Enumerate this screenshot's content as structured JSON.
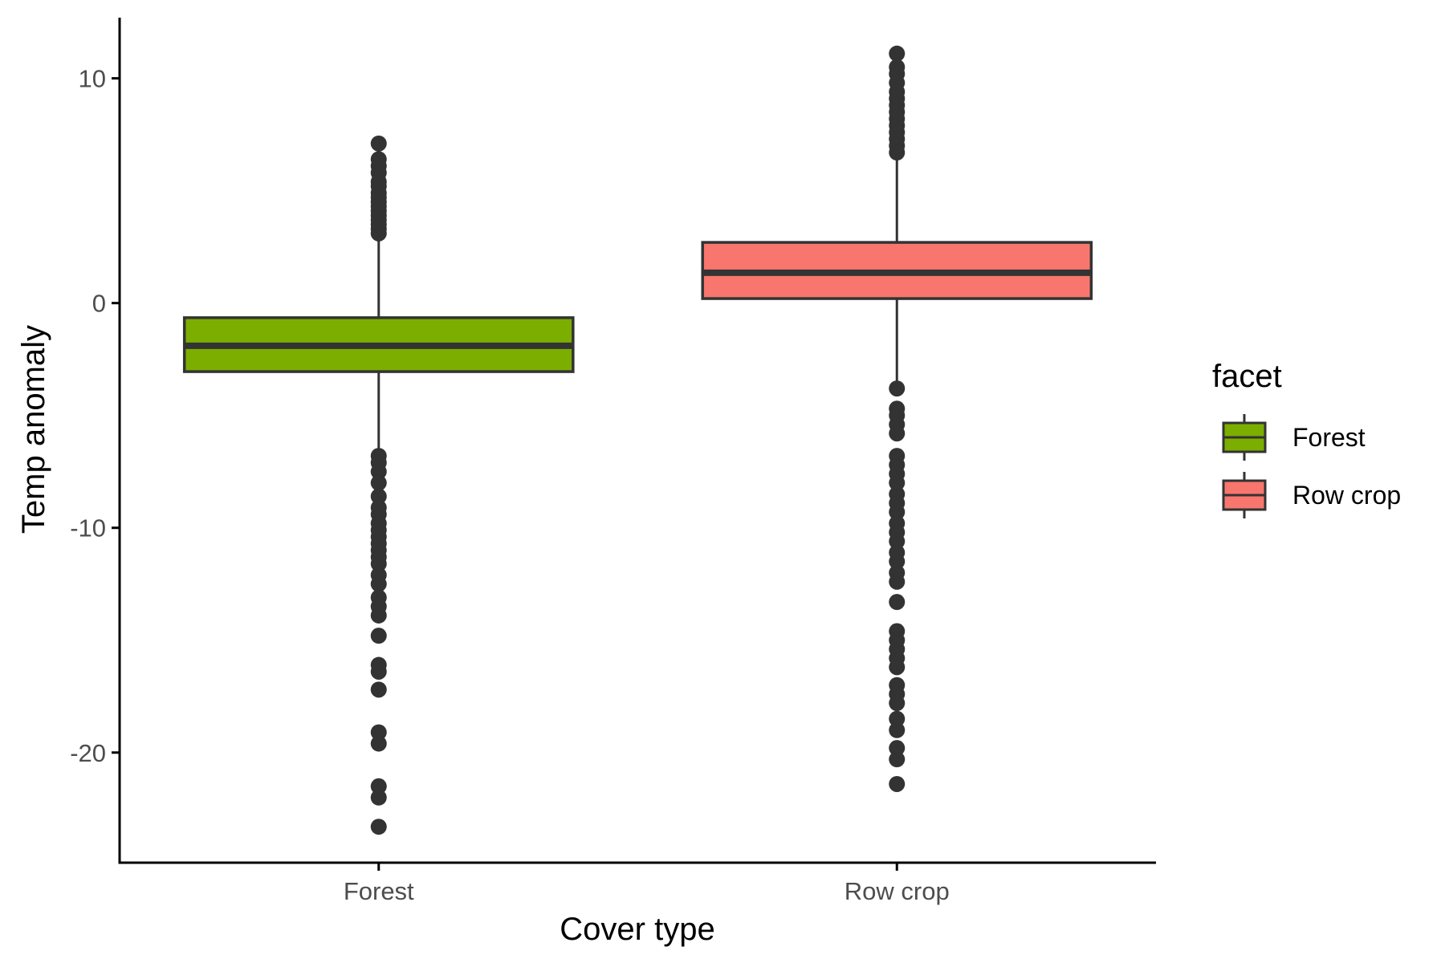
{
  "chart_data": {
    "type": "box",
    "xlabel": "Cover type",
    "ylabel": "Temp anomaly",
    "categories": [
      "Forest",
      "Row crop"
    ],
    "ylim": [
      -24.9,
      12.7
    ],
    "yticks": [
      10,
      0,
      -10,
      -20
    ],
    "grid": false,
    "legend": {
      "title": "facet",
      "position": "right",
      "entries": [
        "Forest",
        "Row crop"
      ]
    },
    "series": [
      {
        "name": "Forest",
        "color": "#7CAE00",
        "q1": -3.05,
        "median": -1.9,
        "q3": -0.65,
        "whisker_low": -6.7,
        "whisker_high": 2.95,
        "outliers": [
          7.1,
          6.4,
          6.1,
          5.8,
          5.4,
          5.2,
          4.9,
          4.7,
          4.5,
          4.3,
          4.1,
          3.9,
          3.7,
          3.5,
          3.3,
          3.1,
          -6.8,
          -7.1,
          -7.5,
          -8.0,
          -8.6,
          -9.1,
          -9.4,
          -9.8,
          -10.1,
          -10.4,
          -10.7,
          -11.0,
          -11.3,
          -11.6,
          -12.1,
          -12.5,
          -13.1,
          -13.5,
          -13.9,
          -14.8,
          -16.1,
          -16.4,
          -17.2,
          -19.1,
          -19.6,
          -21.5,
          -22.0,
          -23.3
        ]
      },
      {
        "name": "Row crop",
        "color": "#F8766D",
        "q1": 0.2,
        "median": 1.35,
        "q3": 2.7,
        "whisker_low": -3.6,
        "whisker_high": 6.5,
        "outliers": [
          11.1,
          10.5,
          10.2,
          9.8,
          9.4,
          9.1,
          8.8,
          8.5,
          8.2,
          7.9,
          7.6,
          7.3,
          7.0,
          6.7,
          -3.8,
          -4.7,
          -5.0,
          -5.4,
          -5.8,
          -6.8,
          -7.2,
          -7.6,
          -8.0,
          -8.5,
          -8.9,
          -9.3,
          -9.8,
          -10.2,
          -10.6,
          -11.1,
          -11.5,
          -12.0,
          -12.4,
          -13.3,
          -14.6,
          -15.0,
          -15.4,
          -15.8,
          -16.2,
          -17.0,
          -17.4,
          -17.8,
          -18.5,
          -19.0,
          -19.8,
          -20.3,
          -21.4
        ]
      }
    ]
  }
}
